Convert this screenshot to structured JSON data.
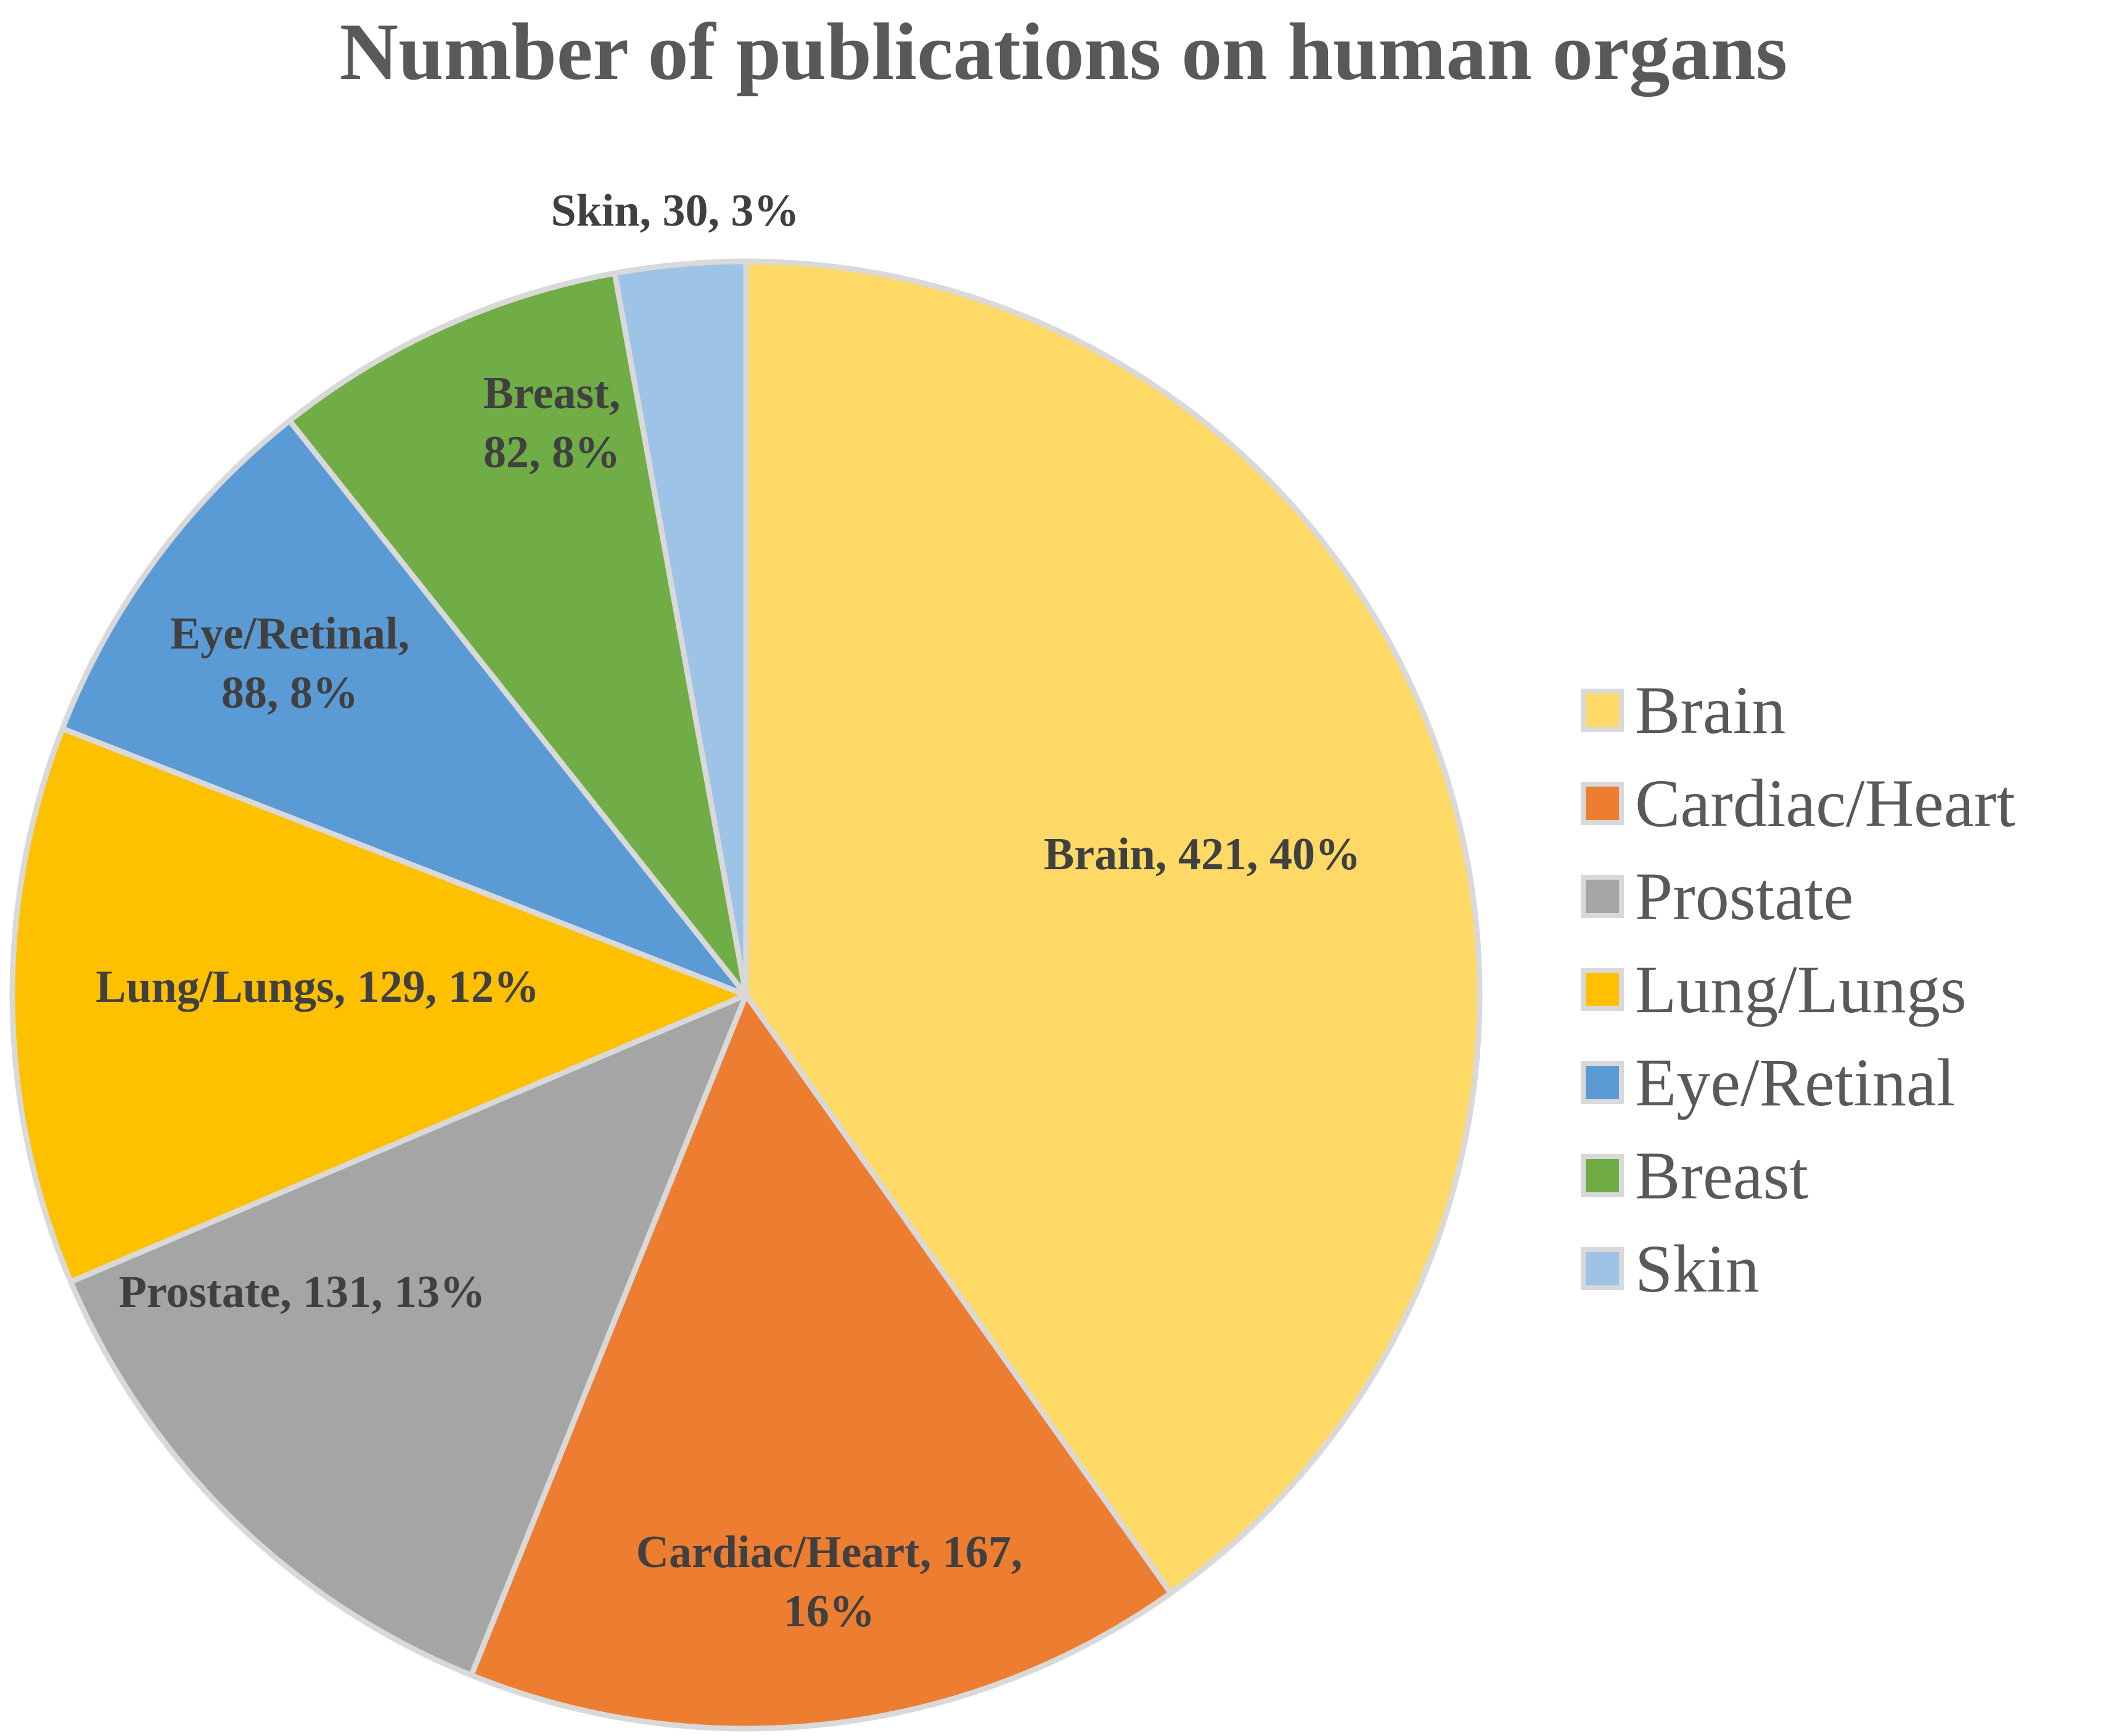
{
  "chart_data": {
    "type": "pie",
    "title": "Number of publications on human organs",
    "legend_position": "right",
    "start_angle_deg": 0,
    "direction": "clockwise",
    "slices": [
      {
        "name": "Brain",
        "value": 421,
        "percent": "40%",
        "color": "#FFD966",
        "label_lines": [
          "Brain, 421, 40%"
        ]
      },
      {
        "name": "Cardiac/Heart",
        "value": 167,
        "percent": "16%",
        "color": "#ED7D31",
        "label_lines": [
          "Cardiac/Heart, 167,",
          "16%"
        ]
      },
      {
        "name": "Prostate",
        "value": 131,
        "percent": "13%",
        "color": "#A5A5A5",
        "label_lines": [
          "Prostate, 131, 13%"
        ]
      },
      {
        "name": "Lung/Lungs",
        "value": 129,
        "percent": "12%",
        "color": "#FFC000",
        "label_lines": [
          "Lung/Lungs, 129, 12%"
        ]
      },
      {
        "name": "Eye/Retinal",
        "value": 88,
        "percent": "8%",
        "color": "#5B9BD5",
        "label_lines": [
          "Eye/Retinal,",
          "88, 8%"
        ]
      },
      {
        "name": "Breast",
        "value": 82,
        "percent": "8%",
        "color": "#70AD47",
        "label_lines": [
          "Breast,",
          "82, 8%"
        ]
      },
      {
        "name": "Skin",
        "value": 30,
        "percent": "3%",
        "color": "#9DC3E6",
        "label_lines": [
          "Skin, 30, 3%"
        ]
      }
    ],
    "slice_border_color": "#D9D9D9",
    "legend_swatch_border_color": "#D9D9D9"
  }
}
